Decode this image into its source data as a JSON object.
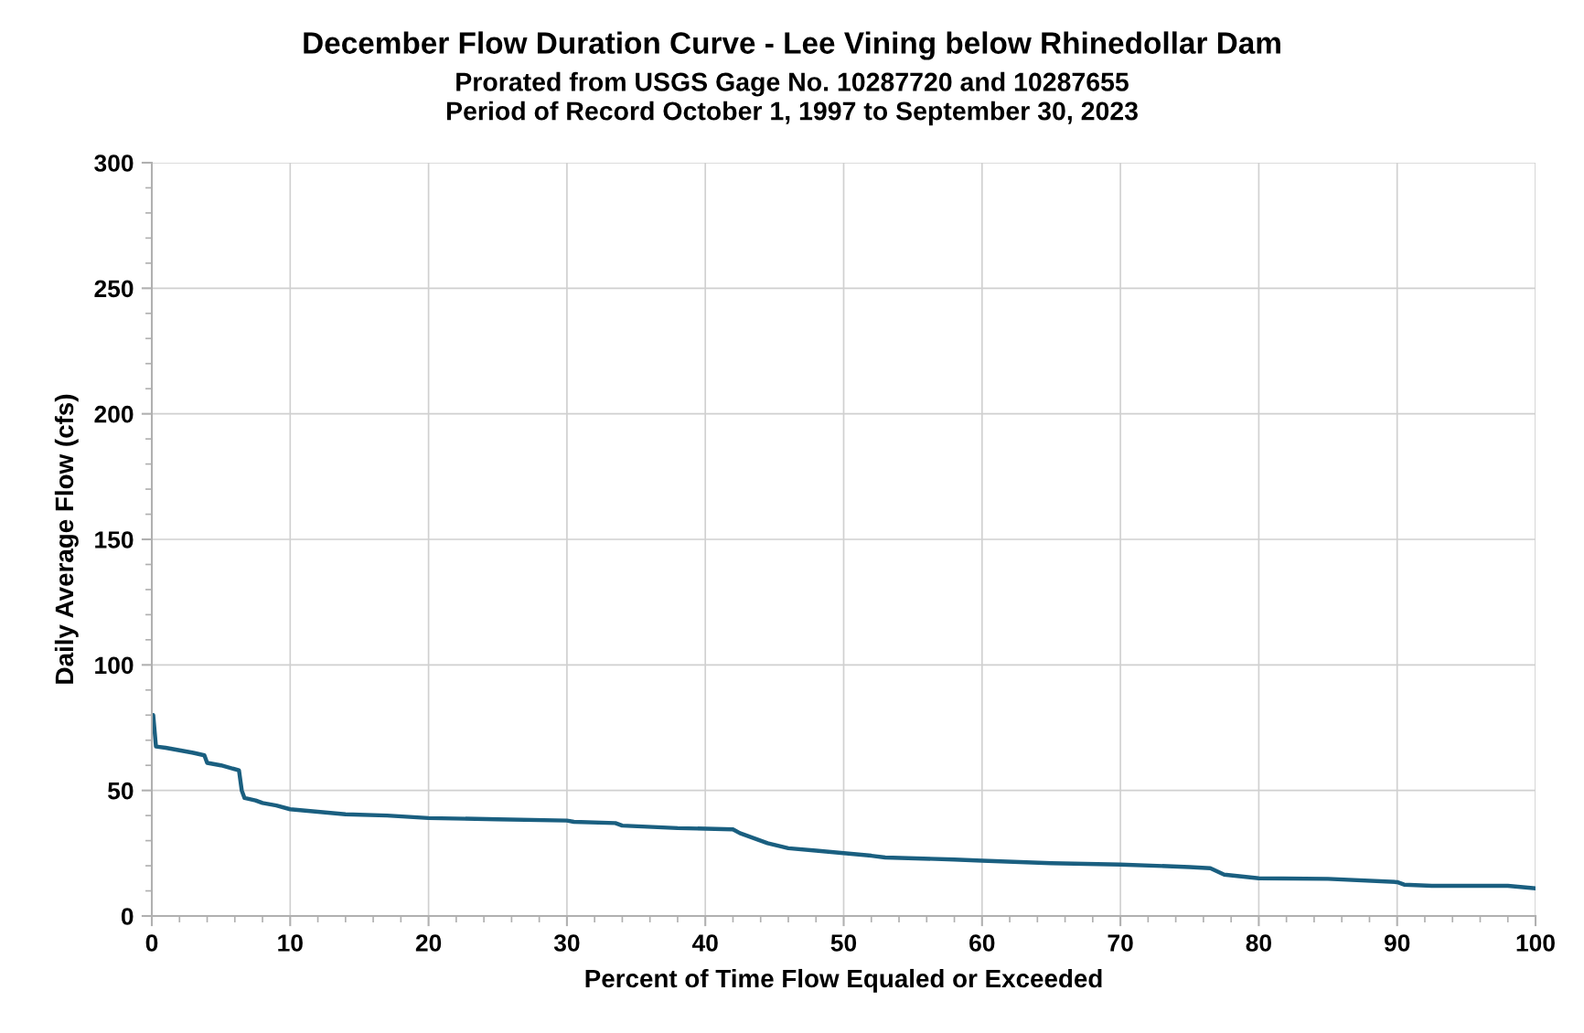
{
  "chart_data": {
    "type": "line",
    "title": "December Flow Duration Curve - Lee Vining below Rhinedollar Dam",
    "subtitle": "Prorated from USGS Gage No. 10287720 and 10287655\nPeriod of Record October 1, 1997 to September 30, 2023",
    "xlabel": "Percent of Time Flow Equaled or Exceeded",
    "ylabel": "Daily Average Flow (cfs)",
    "xlim": [
      0,
      100
    ],
    "xticks": [
      0,
      10,
      20,
      30,
      40,
      50,
      60,
      70,
      80,
      90,
      100
    ],
    "ylim": [
      0,
      300
    ],
    "yticks": [
      0,
      50,
      100,
      150,
      200,
      250,
      300
    ],
    "grid": true,
    "line_style": "solid",
    "series": [
      {
        "color": "#1a5f80",
        "x": [
          0.1,
          0.3,
          1,
          2,
          3,
          3.8,
          4,
          5,
          6.3,
          6.5,
          6.7,
          7.5,
          8,
          9,
          10,
          12,
          14,
          17,
          20,
          25,
          30,
          30.5,
          33.5,
          34,
          38,
          42,
          42.5,
          43.5,
          44.5,
          46,
          48,
          50,
          52,
          53,
          58,
          60,
          65,
          70,
          75,
          76.5,
          77.5,
          80,
          85,
          90,
          90.5,
          92.5,
          98,
          100
        ],
        "values": [
          80,
          67.5,
          67,
          66,
          65,
          64,
          61,
          60,
          58,
          50,
          47,
          46,
          45,
          44,
          42.5,
          41.5,
          40.5,
          40,
          39,
          38.5,
          38,
          37.5,
          37,
          36,
          35,
          34.5,
          33,
          31,
          29,
          27,
          26,
          25,
          24,
          23.3,
          22.5,
          22,
          21,
          20.5,
          19.5,
          19,
          16.5,
          15,
          14.8,
          13.5,
          12.5,
          12,
          12,
          11
        ]
      }
    ]
  }
}
